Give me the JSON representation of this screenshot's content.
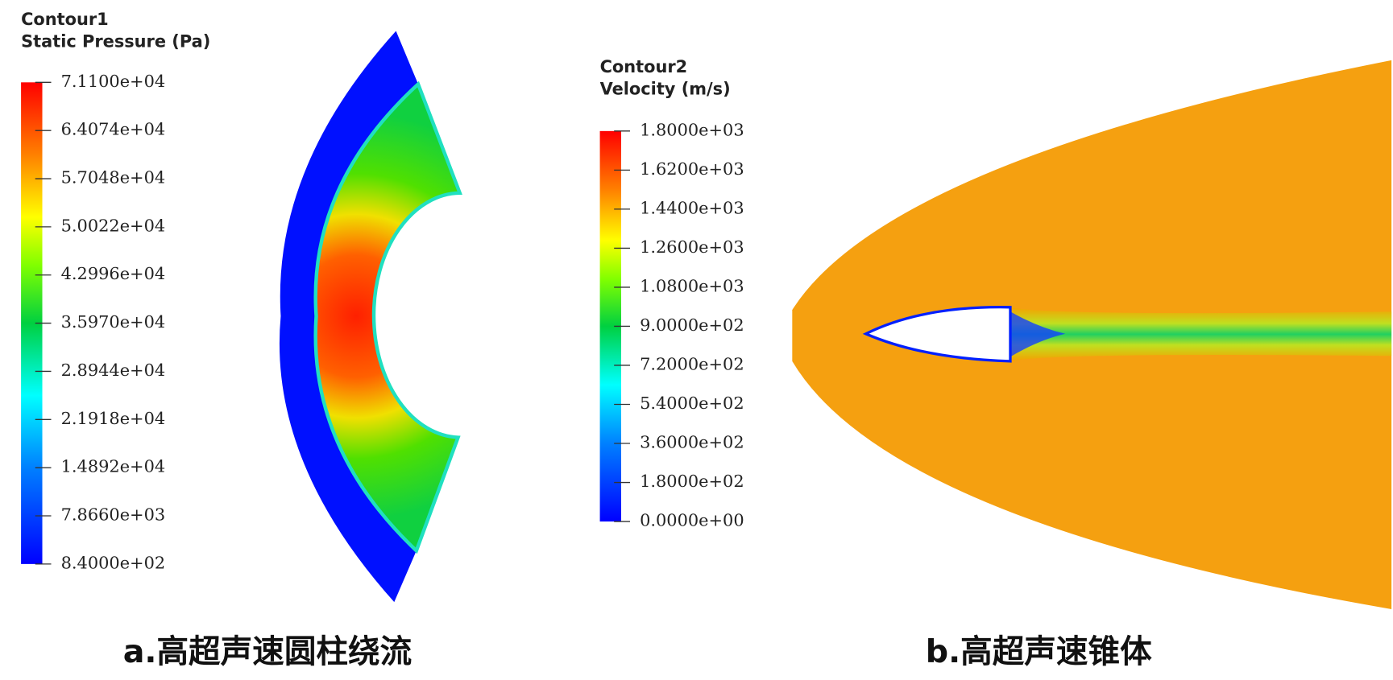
{
  "panels": [
    {
      "legend": {
        "title": "Contour1",
        "variable": "Static Pressure (Pa)",
        "range": [
          840,
          71100
        ],
        "ticks": [
          {
            "value": 71100,
            "label": "7.1100e+04"
          },
          {
            "value": 64074,
            "label": "6.4074e+04"
          },
          {
            "value": 57048,
            "label": "5.7048e+04"
          },
          {
            "value": 50022,
            "label": "5.0022e+04"
          },
          {
            "value": 42996,
            "label": "4.2996e+04"
          },
          {
            "value": 35970,
            "label": "3.5970e+04"
          },
          {
            "value": 28944,
            "label": "2.8944e+04"
          },
          {
            "value": 21918,
            "label": "2.1918e+04"
          },
          {
            "value": 14892,
            "label": "1.4892e+04"
          },
          {
            "value": 7866,
            "label": "7.8660e+03"
          },
          {
            "value": 840,
            "label": "8.4000e+02"
          }
        ]
      },
      "caption": "a.高超声速圆柱绕流"
    },
    {
      "legend": {
        "title": "Contour2",
        "variable": "Velocity (m/s)",
        "range": [
          0,
          1800
        ],
        "ticks": [
          {
            "value": 1800,
            "label": "1.8000e+03"
          },
          {
            "value": 1620,
            "label": "1.6200e+03"
          },
          {
            "value": 1440,
            "label": "1.4400e+03"
          },
          {
            "value": 1260,
            "label": "1.2600e+03"
          },
          {
            "value": 1080,
            "label": "1.0800e+03"
          },
          {
            "value": 900,
            "label": "9.0000e+02"
          },
          {
            "value": 720,
            "label": "7.2000e+02"
          },
          {
            "value": 540,
            "label": "5.4000e+02"
          },
          {
            "value": 360,
            "label": "3.6000e+02"
          },
          {
            "value": 180,
            "label": "1.8000e+02"
          },
          {
            "value": 0,
            "label": "0.0000e+00"
          }
        ]
      },
      "caption": "b.高超声速锥体"
    }
  ]
}
